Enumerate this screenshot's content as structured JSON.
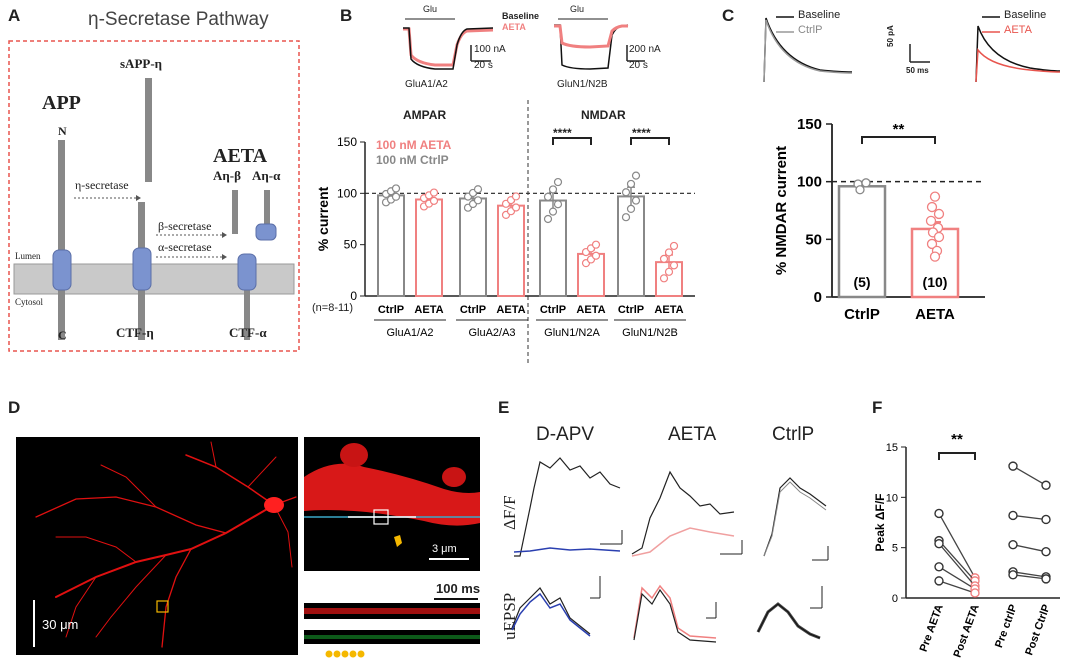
{
  "panel_labels": {
    "a": "A",
    "b": "B",
    "c": "C",
    "d": "D",
    "e": "E",
    "f": "F"
  },
  "panelA": {
    "title": "η-Secretase Pathway",
    "app": "APP",
    "n_term": "N",
    "c_term": "C",
    "sapp": "sAPP-η",
    "eta_secretase": "η-secretase",
    "aeta": "AETA",
    "a_eta_beta": "Aη-β",
    "a_eta_alpha": "Aη-α",
    "beta_secretase": "β-secretase",
    "alpha_secretase": "α-secretase",
    "lumen": "Lumen",
    "cytosol": "Cytosol",
    "ctf_eta": "CTF-η",
    "ctf_alpha": "CTF-α",
    "accent": "#e8554e"
  },
  "panelB": {
    "trace1": {
      "glu": "Glu",
      "baseline": "Baseline",
      "aeta": "AETA",
      "scale_y": "100 nA",
      "scale_x": "20 s",
      "name": "GluA1/A2"
    },
    "trace2": {
      "glu": "Glu",
      "scale_y": "200 nA",
      "scale_x": "20 s",
      "name": "GluN1/N2B"
    },
    "group_ampar": "AMPAR",
    "group_nmdar": "NMDAR",
    "legend_aeta": "100 nM AETA",
    "legend_ctrl": "100 nM CtrlP",
    "n_label": "(n=8-11)",
    "sig1": "****",
    "sig2": "****",
    "colors": {
      "ctrl": "#888888",
      "aeta": "#f08080"
    }
  },
  "chart_data": [
    {
      "type": "bar",
      "title": "",
      "ylabel": "% current",
      "ylim": [
        0,
        150
      ],
      "yticks": [
        0,
        50,
        100,
        150
      ],
      "reference_line": 100,
      "categories": [
        "CtrlP",
        "AETA",
        "CtrlP",
        "AETA",
        "CtrlP",
        "AETA",
        "CtrlP",
        "AETA"
      ],
      "groups": [
        "GluA1/A2",
        "GluA2/A3",
        "GluN1/N2A",
        "GluN1/N2B"
      ],
      "values": [
        98,
        94,
        95,
        88,
        93,
        41,
        97,
        33
      ],
      "errors": [
        3,
        3,
        4,
        4,
        8,
        4,
        9,
        7
      ],
      "series_color": [
        "ctrl",
        "aeta",
        "ctrl",
        "aeta",
        "ctrl",
        "aeta",
        "ctrl",
        "aeta"
      ]
    },
    {
      "type": "bar",
      "title": "",
      "ylabel": "% NMDAR current",
      "ylim": [
        0,
        150
      ],
      "yticks": [
        0,
        50,
        100,
        150
      ],
      "reference_line": 100,
      "categories": [
        "CtrlP",
        "AETA"
      ],
      "values": [
        96,
        59
      ],
      "errors": [
        2,
        6
      ],
      "n": [
        "(5)",
        "(10)"
      ],
      "significance": "**"
    },
    {
      "type": "line",
      "title": "",
      "ylabel": "Peak ΔF/F",
      "ylim": [
        0,
        15
      ],
      "yticks": [
        0,
        5,
        10,
        15
      ],
      "categories": [
        "Pre AETA",
        "Post AETA",
        "Pre ctrlP",
        "Post CtrlP"
      ],
      "series": [
        {
          "name": "AETA",
          "values": [
            [
              8.4,
              2.0
            ],
            [
              5.7,
              1.7
            ],
            [
              5.4,
              1.2
            ],
            [
              3.1,
              0.9
            ],
            [
              1.7,
              0.5
            ]
          ]
        },
        {
          "name": "CtrlP",
          "values": [
            [
              13.1,
              11.2
            ],
            [
              8.2,
              7.8
            ],
            [
              5.3,
              4.6
            ],
            [
              2.6,
              2.1
            ],
            [
              2.3,
              1.9
            ]
          ]
        }
      ],
      "significance": "**"
    }
  ],
  "panelC": {
    "legend1": {
      "baseline": "Baseline",
      "ctrl": "CtrlP"
    },
    "legend2": {
      "baseline": "Baseline",
      "aeta": "AETA"
    },
    "scale_y": "50 pA",
    "scale_x": "50 ms"
  },
  "panelD": {
    "scale1": "30 μm",
    "scale2": "3 μm",
    "scale3": "100 ms"
  },
  "panelE": {
    "col1": "D-APV",
    "col2": "AETA",
    "col3": "CtrlP",
    "row1": "ΔF/F",
    "row2": "uEPSP"
  }
}
